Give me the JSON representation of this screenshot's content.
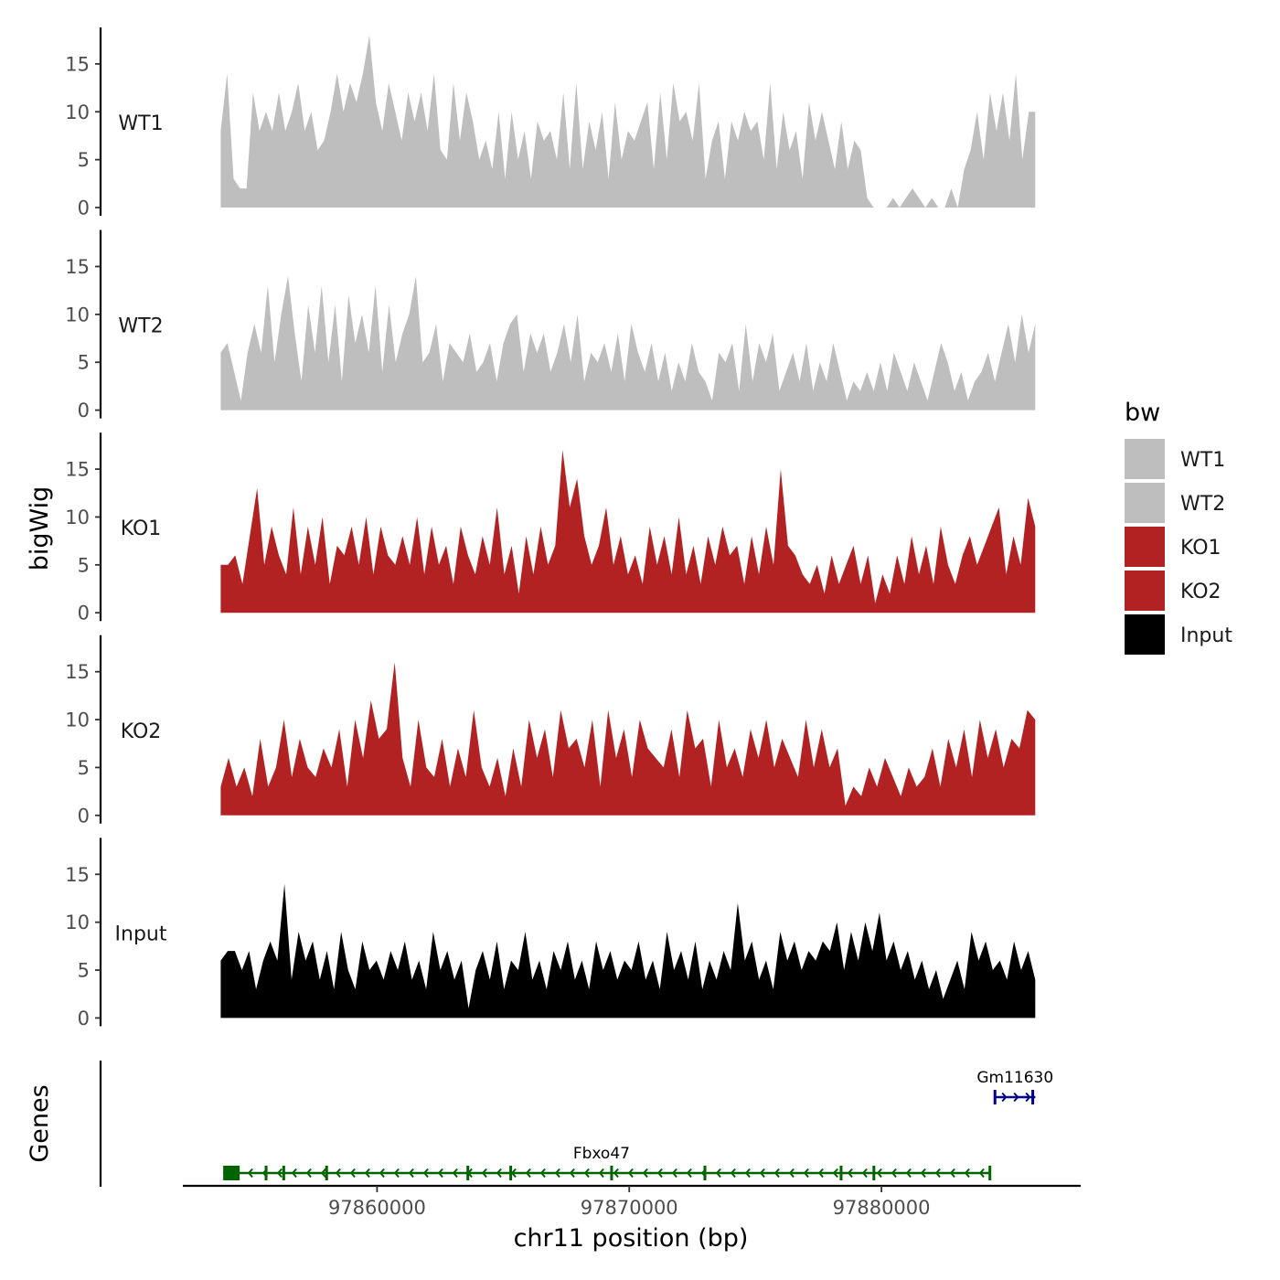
{
  "chart_data": {
    "type": "area",
    "title": "",
    "ylabel": "bigWig",
    "xlabel": "chr11 position (bp)",
    "ylim": [
      0,
      19
    ],
    "y_ticks": [
      0,
      5,
      10,
      15
    ],
    "x_range": [
      97852300,
      97887900
    ],
    "x_ticks": [
      97860000,
      97870000,
      97880000
    ],
    "x_tick_labels": [
      "97860000",
      "97870000",
      "97880000"
    ],
    "data_start": 97853800,
    "data_end": 97886100,
    "tracks": [
      {
        "name": "WT1",
        "label": "WT1",
        "color": "#bebebe",
        "values": [
          8,
          14,
          3,
          2,
          2,
          12,
          8,
          10,
          8,
          12,
          8,
          10,
          13,
          8,
          10,
          6,
          7,
          10,
          14,
          10,
          13,
          11,
          14,
          18,
          11,
          8,
          13,
          10,
          7,
          12,
          9,
          12,
          8,
          14,
          6,
          5,
          13,
          7,
          12,
          9,
          5,
          7,
          4,
          10,
          3,
          10,
          5,
          8,
          3,
          9,
          7,
          8,
          5,
          12,
          4,
          13,
          4,
          9,
          6,
          10,
          3,
          11,
          5,
          8,
          7,
          9,
          11,
          4,
          12,
          5,
          13,
          9,
          10,
          7,
          13,
          3,
          7,
          9,
          3,
          9,
          7,
          10,
          8,
          9,
          5,
          13,
          4,
          10,
          6,
          8,
          3,
          11,
          7,
          10,
          7,
          4,
          9,
          4,
          7,
          6,
          1,
          0,
          0,
          0,
          1,
          0,
          1,
          2,
          1,
          0,
          1,
          0,
          0,
          2,
          0,
          4,
          6,
          10,
          5,
          12,
          8,
          12,
          7,
          14,
          5,
          10,
          10
        ]
      },
      {
        "name": "WT2",
        "label": "WT2",
        "color": "#bebebe",
        "values": [
          6,
          7,
          4,
          1,
          6,
          9,
          6,
          13,
          5,
          10,
          14,
          8,
          3,
          11,
          6,
          13,
          5,
          11,
          3,
          12,
          7,
          10,
          6,
          13,
          4,
          11,
          5,
          8,
          10,
          14,
          5,
          6,
          9,
          3,
          7,
          6,
          5,
          8,
          4,
          5,
          7,
          3,
          7,
          9,
          10,
          4,
          8,
          6,
          8,
          4,
          6,
          9,
          5,
          10,
          3,
          6,
          5,
          7,
          4,
          8,
          3,
          9,
          6,
          4,
          7,
          3,
          6,
          2,
          5,
          3,
          7,
          4,
          3,
          1,
          6,
          5,
          7,
          2,
          9,
          3,
          7,
          5,
          8,
          2,
          4,
          6,
          3,
          7,
          2,
          5,
          3,
          7,
          4,
          1,
          3,
          2,
          4,
          2,
          5,
          2,
          6,
          4,
          2,
          5,
          3,
          1,
          4,
          7,
          5,
          2,
          4,
          1,
          3,
          4,
          6,
          3,
          6,
          9,
          5,
          10,
          6,
          9
        ]
      },
      {
        "name": "KO1",
        "label": "KO1",
        "color": "#b22222",
        "values": [
          5,
          5,
          6,
          3,
          8,
          13,
          5,
          9,
          6,
          4,
          11,
          4,
          9,
          5,
          10,
          3,
          7,
          6,
          9,
          5,
          10,
          4,
          9,
          6,
          5,
          8,
          5,
          10,
          4,
          9,
          5,
          7,
          3,
          9,
          6,
          4,
          8,
          5,
          11,
          4,
          7,
          2,
          8,
          4,
          9,
          5,
          7,
          17,
          11,
          14,
          8,
          5,
          7,
          11,
          5,
          8,
          4,
          6,
          3,
          9,
          5,
          8,
          4,
          10,
          4,
          7,
          3,
          8,
          5,
          9,
          6,
          7,
          3,
          8,
          4,
          9,
          5,
          15,
          7,
          6,
          4,
          3,
          5,
          2,
          6,
          3,
          5,
          7,
          3,
          6,
          1,
          4,
          2,
          6,
          3,
          8,
          4,
          7,
          3,
          9,
          5,
          3,
          6,
          8,
          5,
          7,
          9,
          11,
          4,
          8,
          5,
          12,
          9
        ]
      },
      {
        "name": "KO2",
        "label": "KO2",
        "color": "#b22222",
        "values": [
          3,
          6,
          3,
          5,
          2,
          8,
          3,
          5,
          10,
          4,
          8,
          5,
          4,
          7,
          5,
          9,
          3,
          10,
          6,
          12,
          8,
          9,
          16,
          6,
          3,
          10,
          5,
          4,
          8,
          3,
          7,
          4,
          11,
          5,
          3,
          6,
          2,
          7,
          3,
          10,
          6,
          9,
          4,
          11,
          7,
          8,
          5,
          10,
          3,
          11,
          6,
          9,
          4,
          10,
          7,
          6,
          5,
          9,
          4,
          11,
          7,
          8,
          3,
          10,
          5,
          7,
          4,
          9,
          6,
          10,
          5,
          8,
          6,
          4,
          10,
          5,
          9,
          5,
          7,
          1,
          3,
          2,
          5,
          3,
          6,
          4,
          2,
          5,
          3,
          4,
          7,
          3,
          8,
          5,
          9,
          4,
          10,
          6,
          9,
          5,
          8,
          7,
          11,
          10
        ]
      },
      {
        "name": "Input",
        "label": "Input",
        "color": "#000000",
        "values": [
          6,
          7,
          7,
          5,
          7,
          3,
          6,
          8,
          6,
          14,
          4,
          9,
          6,
          8,
          4,
          7,
          3,
          9,
          5,
          3,
          8,
          5,
          6,
          4,
          7,
          5,
          8,
          4,
          6,
          3,
          9,
          5,
          7,
          4,
          6,
          1,
          5,
          7,
          4,
          8,
          3,
          6,
          5,
          9,
          4,
          6,
          3,
          7,
          5,
          8,
          4,
          6,
          3,
          8,
          5,
          7,
          4,
          6,
          5,
          8,
          4,
          6,
          3,
          9,
          5,
          7,
          4,
          8,
          3,
          6,
          4,
          7,
          5,
          12,
          6,
          8,
          4,
          6,
          3,
          9,
          6,
          8,
          5,
          7,
          6,
          8,
          7,
          10,
          5,
          9,
          6,
          10,
          7,
          11,
          6,
          8,
          5,
          7,
          4,
          6,
          3,
          5,
          2,
          4,
          6,
          3,
          9,
          6,
          8,
          5,
          6,
          4,
          8,
          5,
          7,
          4
        ]
      }
    ],
    "legend": {
      "title": "bw",
      "position": "right",
      "entries": [
        {
          "label": "WT1",
          "color": "#bebebe"
        },
        {
          "label": "WT2",
          "color": "#bebebe"
        },
        {
          "label": "KO1",
          "color": "#b22222"
        },
        {
          "label": "KO2",
          "color": "#b22222"
        },
        {
          "label": "Input",
          "color": "#000000"
        }
      ]
    },
    "genes_panel": {
      "ylabel": "Genes",
      "genes": [
        {
          "name": "Fbxo47",
          "strand": "-",
          "start": 97853900,
          "end": 97884300,
          "color": "#006400",
          "exons": [
            97853900,
            97855600,
            97856300,
            97858000,
            97863600,
            97865300,
            97869300,
            97873000,
            97878400,
            97879700,
            97884300
          ]
        },
        {
          "name": "Gm11630",
          "strand": "+",
          "start": 97884500,
          "end": 97886100,
          "color": "#00008b",
          "exons": [
            97884500,
            97886000
          ]
        }
      ]
    }
  }
}
